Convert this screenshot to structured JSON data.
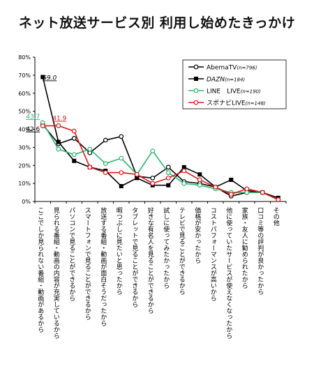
{
  "chart_data": {
    "type": "line",
    "title": "ネット放送サービス別 利用し始めたきっかけ",
    "ylim": [
      0,
      80
    ],
    "yticks": [
      "0%",
      "10%",
      "20%",
      "30%",
      "40%",
      "50%",
      "60%",
      "70%",
      "80%"
    ],
    "categories": [
      "ここでしか見られない番組・動画があるから",
      "見られる番組・動画の内容が充実しているから",
      "パソコンで見ることができるから",
      "スマートフォンで見ることができるから",
      "放送する番組・動画が面白そうだったから",
      "暇つぶしに見たいと思ったから",
      "タブレットで見ることができるから",
      "好きな有名人を見ることができるから",
      "試しに使ってみたかったから",
      "テレビで見ることができるから",
      "価格が安かったから",
      "コストパフォーマンスが高いから",
      "他に使っていたサービスが使えなくなったから",
      "家族・友人に勧められたから",
      "口コミ等の評判が良かったから",
      "その他"
    ],
    "series": [
      {
        "name": "AbemaTV",
        "n": "(n=796)",
        "color": "#000000",
        "marker": "circle-open",
        "values": [
          42.6,
          32,
          35,
          27,
          34,
          36,
          14,
          13,
          19,
          11,
          10,
          8,
          3,
          5,
          5,
          1
        ]
      },
      {
        "name": "DAZN",
        "n": "(n=184)",
        "color": "#000000",
        "marker": "square-filled",
        "values": [
          69.0,
          33,
          22.5,
          19,
          17,
          8.5,
          13,
          9,
          9,
          19,
          15,
          8,
          12,
          6,
          5,
          2
        ]
      },
      {
        "name": "LINE　LIVE",
        "n": "(n=190)",
        "color": "#2db56e",
        "marker": "circle-open",
        "values": [
          43.7,
          29,
          26,
          29,
          21,
          24,
          15,
          28,
          16,
          10,
          9,
          7,
          5,
          5,
          5,
          1
        ]
      },
      {
        "name": "スポナビLIVE",
        "n": "(n=148)",
        "color": "#e0161a",
        "marker": "circle-open",
        "values": [
          41.9,
          42,
          39,
          19,
          16,
          16,
          15,
          10,
          13,
          17,
          12,
          8,
          4,
          7,
          5,
          1
        ]
      }
    ],
    "annotations": [
      {
        "series": "DAZN",
        "index": 0,
        "text": "69.0"
      },
      {
        "series": "LINE　LIVE",
        "index": 0,
        "text": "43.7"
      },
      {
        "series": "AbemaTV",
        "index": 0,
        "text": "42.6"
      },
      {
        "series": "スポナビLIVE",
        "index": 0,
        "text": "41.9"
      }
    ],
    "legend": "top-right",
    "grid": false
  }
}
